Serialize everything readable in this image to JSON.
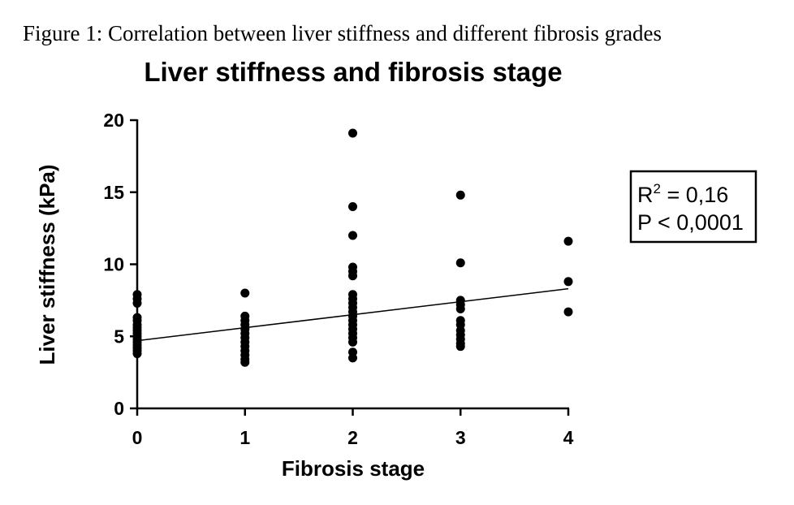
{
  "caption": "Figure 1: Correlation between liver stiffness and different fibrosis grades",
  "chart_data": {
    "type": "scatter",
    "title": "Liver stiffness and fibrosis stage",
    "xlabel": "Fibrosis stage",
    "ylabel": "Liver stiffness (kPa)",
    "xlim": [
      0,
      4
    ],
    "ylim": [
      0,
      20
    ],
    "x_ticks": [
      "0",
      "1",
      "2",
      "3",
      "4"
    ],
    "y_ticks": [
      "0",
      "5",
      "10",
      "15",
      "20"
    ],
    "grid": false,
    "legend": "none",
    "points": [
      {
        "x": 0,
        "y": 7.9
      },
      {
        "x": 0,
        "y": 7.6
      },
      {
        "x": 0,
        "y": 7.3
      },
      {
        "x": 0,
        "y": 6.3
      },
      {
        "x": 0,
        "y": 6.1
      },
      {
        "x": 0,
        "y": 5.8
      },
      {
        "x": 0,
        "y": 5.6
      },
      {
        "x": 0,
        "y": 5.4
      },
      {
        "x": 0,
        "y": 5.2
      },
      {
        "x": 0,
        "y": 5.0
      },
      {
        "x": 0,
        "y": 4.8
      },
      {
        "x": 0,
        "y": 4.6
      },
      {
        "x": 0,
        "y": 4.4
      },
      {
        "x": 0,
        "y": 4.2
      },
      {
        "x": 0,
        "y": 4.0
      },
      {
        "x": 0,
        "y": 3.8
      },
      {
        "x": 1,
        "y": 8.0
      },
      {
        "x": 1,
        "y": 6.4
      },
      {
        "x": 1,
        "y": 6.1
      },
      {
        "x": 1,
        "y": 5.8
      },
      {
        "x": 1,
        "y": 5.5
      },
      {
        "x": 1,
        "y": 5.2
      },
      {
        "x": 1,
        "y": 4.9
      },
      {
        "x": 1,
        "y": 4.6
      },
      {
        "x": 1,
        "y": 4.3
      },
      {
        "x": 1,
        "y": 4.0
      },
      {
        "x": 1,
        "y": 3.7
      },
      {
        "x": 1,
        "y": 3.4
      },
      {
        "x": 1,
        "y": 3.2
      },
      {
        "x": 2,
        "y": 19.1
      },
      {
        "x": 2,
        "y": 14.0
      },
      {
        "x": 2,
        "y": 12.0
      },
      {
        "x": 2,
        "y": 9.8
      },
      {
        "x": 2,
        "y": 9.5
      },
      {
        "x": 2,
        "y": 9.2
      },
      {
        "x": 2,
        "y": 7.9
      },
      {
        "x": 2,
        "y": 7.6
      },
      {
        "x": 2,
        "y": 7.3
      },
      {
        "x": 2,
        "y": 7.0
      },
      {
        "x": 2,
        "y": 6.7
      },
      {
        "x": 2,
        "y": 6.4
      },
      {
        "x": 2,
        "y": 6.1
      },
      {
        "x": 2,
        "y": 5.8
      },
      {
        "x": 2,
        "y": 5.5
      },
      {
        "x": 2,
        "y": 5.2
      },
      {
        "x": 2,
        "y": 4.9
      },
      {
        "x": 2,
        "y": 4.6
      },
      {
        "x": 2,
        "y": 3.9
      },
      {
        "x": 2,
        "y": 3.5
      },
      {
        "x": 3,
        "y": 14.8
      },
      {
        "x": 3,
        "y": 10.1
      },
      {
        "x": 3,
        "y": 7.5
      },
      {
        "x": 3,
        "y": 7.2
      },
      {
        "x": 3,
        "y": 6.9
      },
      {
        "x": 3,
        "y": 6.1
      },
      {
        "x": 3,
        "y": 5.8
      },
      {
        "x": 3,
        "y": 5.4
      },
      {
        "x": 3,
        "y": 5.1
      },
      {
        "x": 3,
        "y": 4.8
      },
      {
        "x": 3,
        "y": 4.5
      },
      {
        "x": 3,
        "y": 4.3
      },
      {
        "x": 4,
        "y": 11.6
      },
      {
        "x": 4,
        "y": 8.8
      },
      {
        "x": 4,
        "y": 6.7
      }
    ],
    "regression_line": {
      "x": [
        0,
        4
      ],
      "y": [
        4.7,
        8.3
      ]
    },
    "annotation": {
      "r_prefix": "R",
      "r_superscript": "2",
      "r_value": " = 0,16",
      "p_text": "P < 0,0001"
    }
  }
}
